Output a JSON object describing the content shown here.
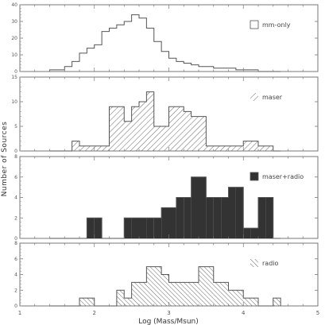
{
  "chart_data": [
    {
      "type": "histogram",
      "legend": "mm-only",
      "legend_style": "outline",
      "ylim": [
        0,
        40
      ],
      "yticks": [
        0,
        10,
        20,
        30,
        40
      ],
      "bin_edges": [
        1.4,
        1.5,
        1.6,
        1.7,
        1.8,
        1.9,
        2.0,
        2.1,
        2.2,
        2.3,
        2.4,
        2.5,
        2.6,
        2.7,
        2.8,
        2.9,
        3.0,
        3.1,
        3.2,
        3.3,
        3.4,
        3.5,
        3.6,
        3.7,
        3.8,
        3.9,
        4.0,
        4.1,
        4.2,
        4.3,
        4.4,
        4.5
      ],
      "values": [
        1,
        1,
        3,
        6,
        11,
        14,
        16,
        24,
        26,
        28,
        30,
        34,
        32,
        26,
        18,
        12,
        8,
        6,
        5,
        4,
        3,
        3,
        2,
        2,
        2,
        1,
        1,
        1,
        0,
        0,
        0
      ]
    },
    {
      "type": "histogram",
      "legend": "maser",
      "legend_style": "hatch-right",
      "ylim": [
        0,
        15
      ],
      "yticks": [
        0,
        5,
        10,
        15
      ],
      "bin_edges": [
        1.4,
        1.5,
        1.6,
        1.7,
        1.8,
        1.9,
        2.0,
        2.1,
        2.2,
        2.3,
        2.4,
        2.5,
        2.6,
        2.7,
        2.8,
        2.9,
        3.0,
        3.1,
        3.2,
        3.3,
        3.4,
        3.5,
        3.6,
        3.7,
        3.8,
        3.9,
        4.0,
        4.1,
        4.2,
        4.3,
        4.4,
        4.5
      ],
      "values": [
        0,
        0,
        0,
        2,
        1,
        1,
        1,
        1,
        9,
        9,
        6,
        9,
        10,
        12,
        5,
        5,
        9,
        9,
        8,
        7,
        7,
        1,
        1,
        1,
        1,
        1,
        2,
        2,
        1,
        1,
        0
      ]
    },
    {
      "type": "histogram",
      "legend": "maser+radio",
      "legend_style": "solid",
      "ylim": [
        0,
        8
      ],
      "yticks": [
        0,
        2,
        4,
        6,
        8
      ],
      "bin_edges": [
        1.4,
        1.5,
        1.6,
        1.7,
        1.8,
        1.9,
        2.0,
        2.1,
        2.2,
        2.3,
        2.4,
        2.5,
        2.6,
        2.7,
        2.8,
        2.9,
        3.0,
        3.1,
        3.2,
        3.3,
        3.4,
        3.5,
        3.6,
        3.7,
        3.8,
        3.9,
        4.0,
        4.1,
        4.2,
        4.3,
        4.4,
        4.5
      ],
      "values": [
        0,
        0,
        0,
        0,
        0,
        2,
        2,
        0,
        0,
        0,
        2,
        2,
        2,
        2,
        2,
        3,
        3,
        4,
        4,
        6,
        6,
        4,
        4,
        4,
        5,
        5,
        1,
        1,
        4,
        4,
        0
      ]
    },
    {
      "type": "histogram",
      "legend": "radio",
      "legend_style": "hatch-left",
      "ylim": [
        0,
        8
      ],
      "yticks": [
        0,
        2,
        4,
        6,
        8
      ],
      "bin_edges": [
        1.4,
        1.5,
        1.6,
        1.7,
        1.8,
        1.9,
        2.0,
        2.1,
        2.2,
        2.3,
        2.4,
        2.5,
        2.6,
        2.7,
        2.8,
        2.9,
        3.0,
        3.1,
        3.2,
        3.3,
        3.4,
        3.5,
        3.6,
        3.7,
        3.8,
        3.9,
        4.0,
        4.1,
        4.2,
        4.3,
        4.4,
        4.5
      ],
      "values": [
        0,
        0,
        0,
        0,
        1,
        1,
        0,
        0,
        0,
        2,
        1,
        3,
        3,
        5,
        5,
        4,
        3,
        3,
        3,
        3,
        5,
        5,
        3,
        3,
        2,
        2,
        1,
        1,
        0,
        0,
        1
      ]
    }
  ],
  "shared_x": {
    "xlim": [
      1,
      5
    ],
    "xticks": [
      "1",
      "2",
      "3",
      "4",
      "5"
    ],
    "xlabel": "Log (Mass/Msun)"
  },
  "ylabel": "Number of Sources"
}
